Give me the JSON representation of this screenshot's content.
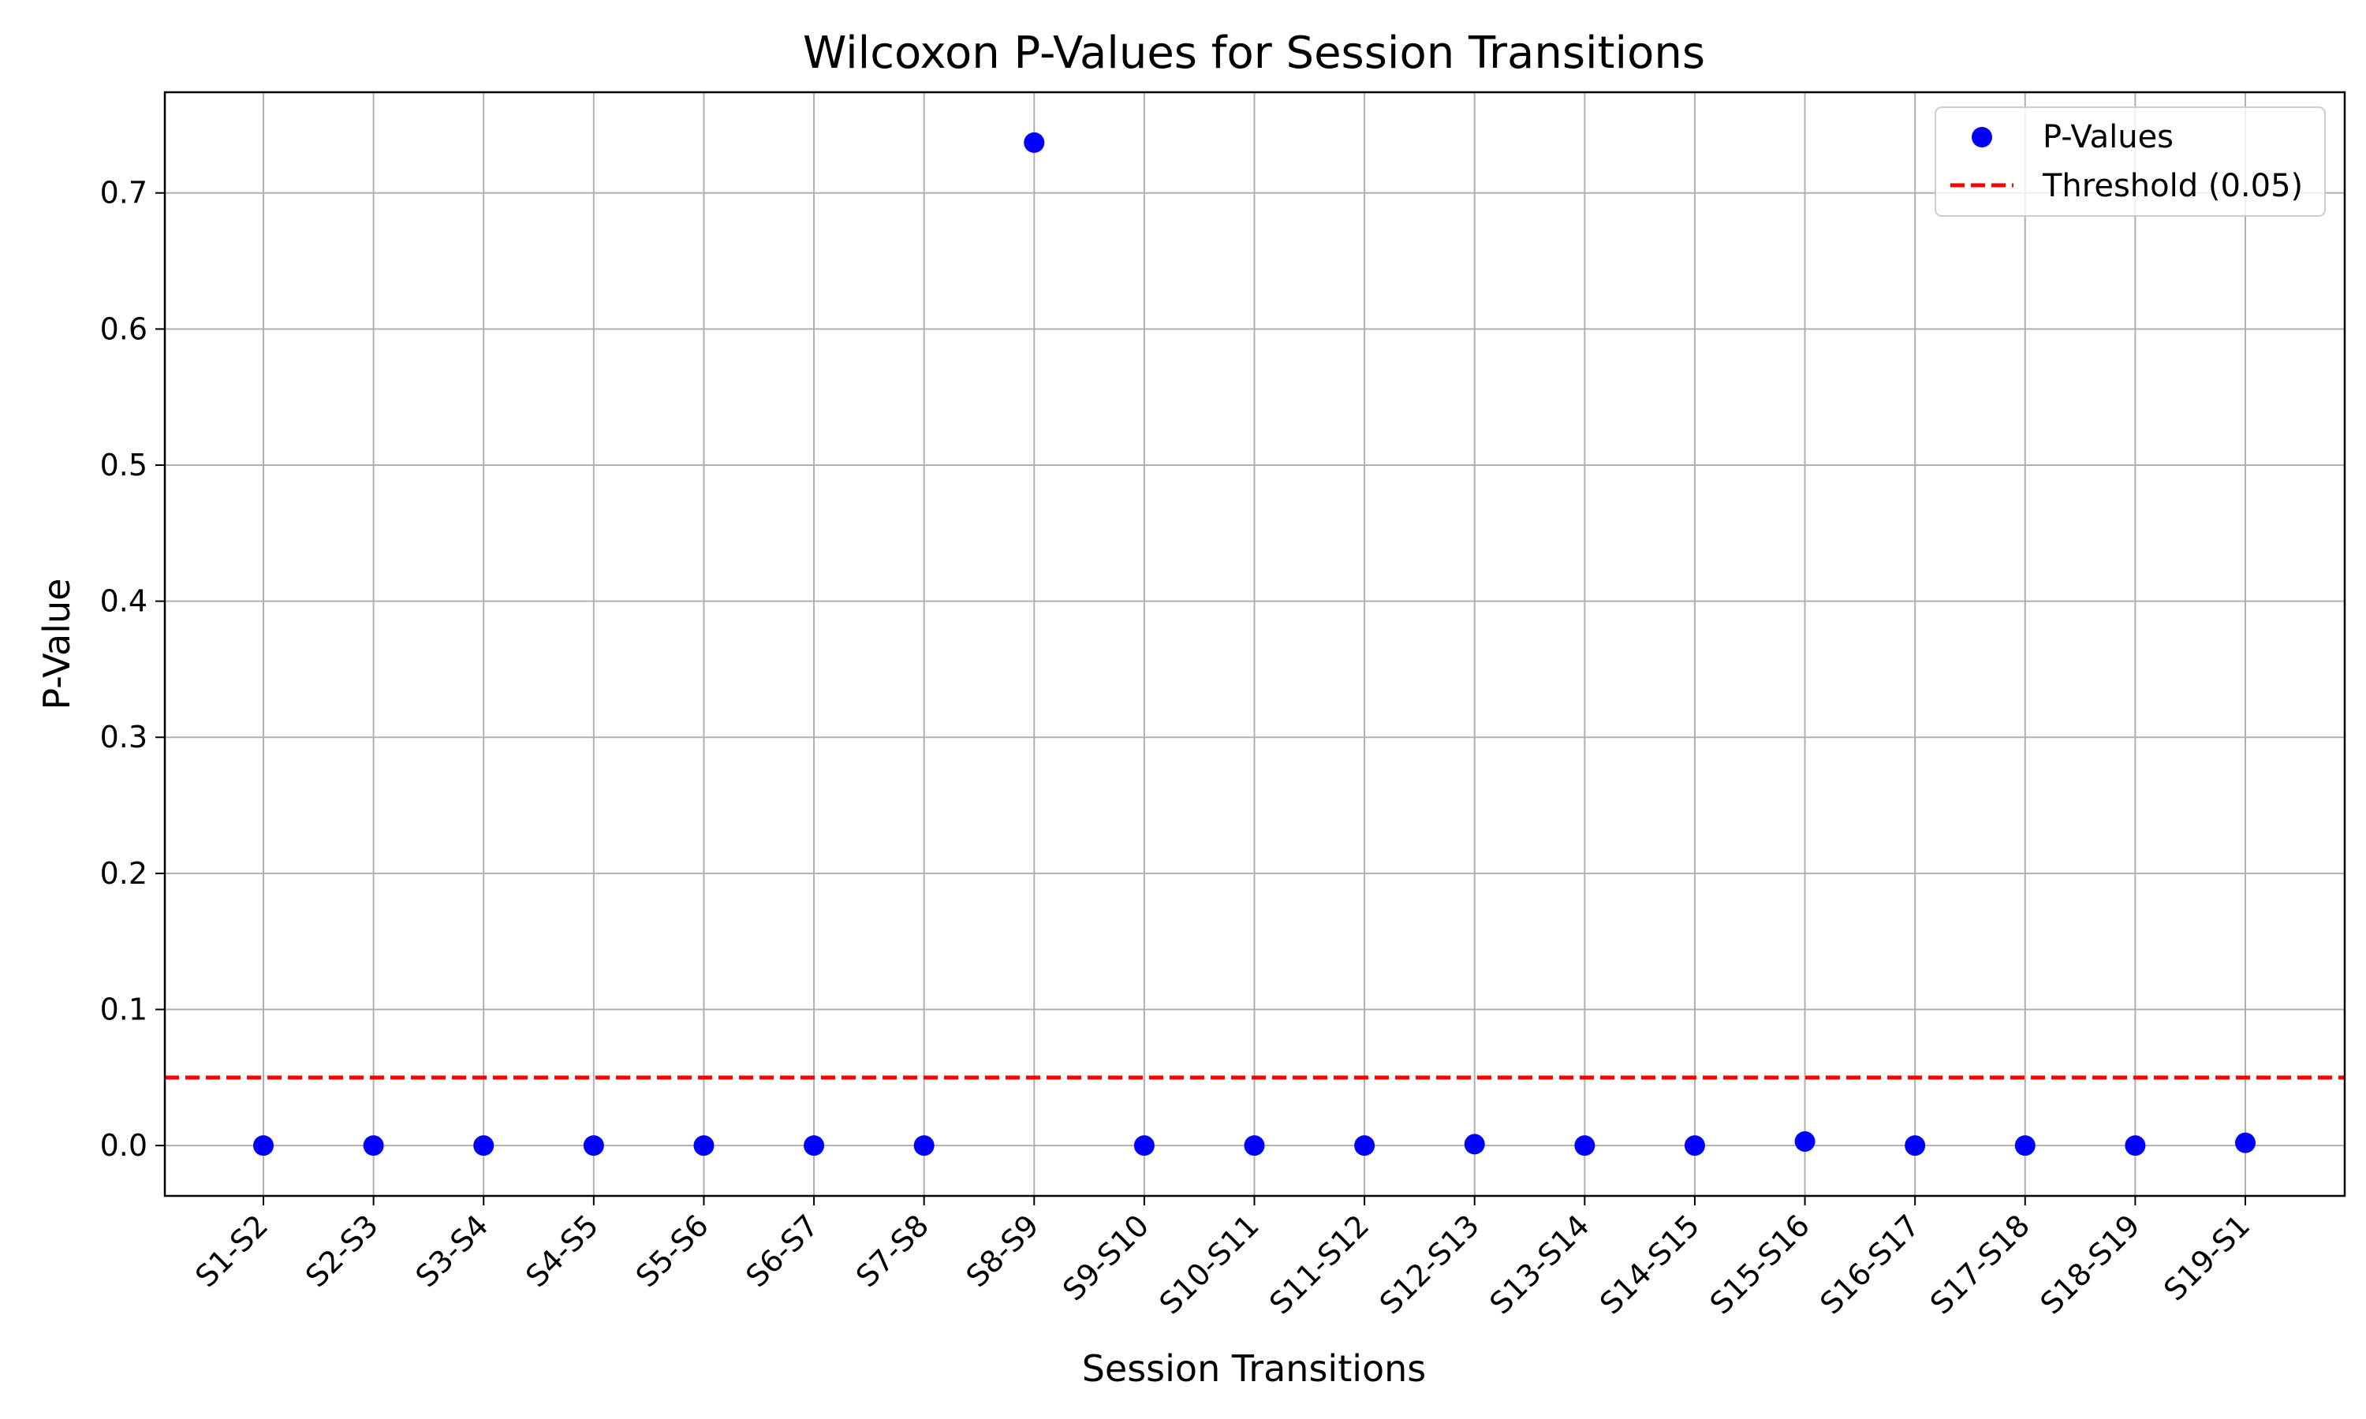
{
  "chart_data": {
    "type": "scatter",
    "title": "Wilcoxon P-Values for Session Transitions",
    "xlabel": "Session Transitions",
    "ylabel": "P-Value",
    "categories": [
      "S1-S2",
      "S2-S3",
      "S3-S4",
      "S4-S5",
      "S5-S6",
      "S6-S7",
      "S7-S8",
      "S8-S9",
      "S9-S10",
      "S10-S11",
      "S11-S12",
      "S12-S13",
      "S13-S14",
      "S14-S15",
      "S15-S16",
      "S16-S17",
      "S17-S18",
      "S18-S19",
      "S19-S1"
    ],
    "series": [
      {
        "name": "P-Values",
        "color": "#0000ff",
        "values": [
          0.0,
          0.0,
          0.0,
          0.0,
          0.0,
          0.0,
          0.0,
          0.737,
          0.0,
          0.0,
          0.0,
          0.001,
          0.0,
          0.0,
          0.003,
          0.0,
          0.0,
          0.0,
          0.002
        ]
      }
    ],
    "threshold": {
      "name": "Threshold (0.05)",
      "value": 0.05,
      "color": "#ff0000",
      "style": "dashed"
    },
    "ylim": [
      -0.037,
      0.774
    ],
    "yticks": [
      0.0,
      0.1,
      0.2,
      0.3,
      0.4,
      0.5,
      0.6,
      0.7
    ],
    "ytick_labels": [
      "0.0",
      "0.1",
      "0.2",
      "0.3",
      "0.4",
      "0.5",
      "0.6",
      "0.7"
    ],
    "grid": true,
    "legend_position": "top-right"
  }
}
